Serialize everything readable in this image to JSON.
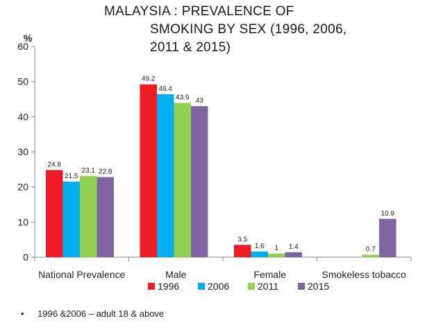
{
  "chart_data": {
    "type": "bar",
    "title_lines": [
      "MALAYSIA : PREVALENCE OF",
      "SMOKING BY SEX  (1996, 2006,",
      "2011 & 2015)"
    ],
    "ylabel": "%",
    "ylim": [
      0,
      60
    ],
    "yticks": [
      0,
      10,
      20,
      30,
      40,
      50,
      60
    ],
    "categories": [
      "National Prevalence",
      "Male",
      "Female",
      "Smokeless tobacco"
    ],
    "series": [
      {
        "name": "1996",
        "color": "#ee1c25",
        "values": [
          24.8,
          49.2,
          3.5,
          null
        ],
        "labels": [
          "24.8",
          "49.2",
          "3.5",
          ""
        ]
      },
      {
        "name": "2006",
        "color": "#00aeef",
        "values": [
          21.5,
          46.4,
          1.6,
          null
        ],
        "labels": [
          "21.5",
          "46.4",
          "1.6",
          ""
        ]
      },
      {
        "name": "2011",
        "color": "#92d050",
        "values": [
          23.1,
          43.9,
          1,
          0.7
        ],
        "labels": [
          "23.1",
          "43.9",
          "1",
          "0.7"
        ]
      },
      {
        "name": "2015",
        "color": "#8064a2",
        "values": [
          22.8,
          43,
          1.4,
          10.9
        ],
        "labels": [
          "22.8",
          "43",
          "1.4",
          "10.9"
        ]
      }
    ],
    "legend_position": "bottom"
  },
  "footnote": {
    "bullet": "•",
    "text": "1996 &2006 – adult 18 & above"
  }
}
